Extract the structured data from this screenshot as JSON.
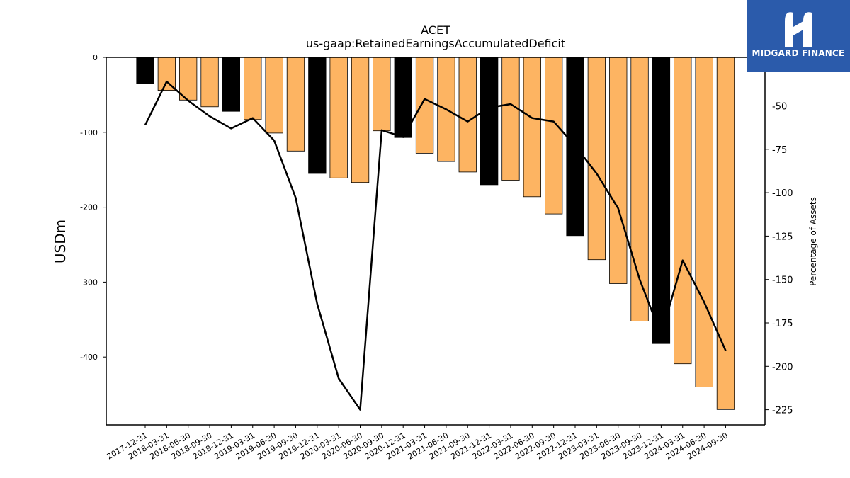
{
  "brand": {
    "name": "MIDGARD FINANCE"
  },
  "chart_data": {
    "type": "bar",
    "title": "ACET",
    "subtitle": "us-gaap:RetainedEarningsAccumulatedDeficit",
    "ylabel": "USDm",
    "y2label": "Percentage of Assets",
    "ylim": [
      -490,
      0
    ],
    "y2lim": [
      -233,
      -27
    ],
    "yticks": [
      0,
      -100,
      -200,
      -300,
      -400
    ],
    "y2ticks": [
      -50,
      -75,
      -100,
      -125,
      -150,
      -175,
      -200,
      -225
    ],
    "categories": [
      "2017-12-31",
      "2018-03-31",
      "2018-06-30",
      "2018-09-30",
      "2018-12-31",
      "2019-03-31",
      "2019-06-30",
      "2019-09-30",
      "2019-12-31",
      "2020-03-31",
      "2020-06-30",
      "2020-09-30",
      "2020-12-31",
      "2021-03-31",
      "2021-06-30",
      "2021-09-30",
      "2021-12-31",
      "2022-03-31",
      "2022-06-30",
      "2022-09-30",
      "2022-12-31",
      "2023-03-31",
      "2023-06-30",
      "2023-09-30",
      "2023-12-31",
      "2024-03-31",
      "2024-06-30",
      "2024-09-30"
    ],
    "series": [
      {
        "type": "bar",
        "axis": "left",
        "values": [
          -35,
          -44,
          -57,
          -66,
          -72,
          -83,
          -101,
          -125,
          -155,
          -161,
          -167,
          -98,
          -107,
          -128,
          -139,
          -153,
          -170,
          -164,
          -186,
          -209,
          -238,
          -270,
          -302,
          -352,
          -382,
          -409,
          -440,
          -470
        ],
        "colors": [
          "#000000",
          "#fdb462",
          "#fdb462",
          "#fdb462",
          "#000000",
          "#fdb462",
          "#fdb462",
          "#fdb462",
          "#000000",
          "#fdb462",
          "#fdb462",
          "#fdb462",
          "#000000",
          "#fdb462",
          "#fdb462",
          "#fdb462",
          "#000000",
          "#fdb462",
          "#fdb462",
          "#fdb462",
          "#000000",
          "#fdb462",
          "#fdb462",
          "#fdb462",
          "#000000",
          "#fdb462",
          "#fdb462",
          "#fdb462"
        ]
      },
      {
        "type": "line",
        "axis": "right",
        "color": "#000000",
        "values": [
          -61,
          -36,
          -47,
          -56,
          -63,
          -57,
          -70,
          -103,
          -164,
          -207,
          -225,
          -64,
          -68,
          -46,
          -52,
          -59,
          -51,
          -49,
          -57,
          -59,
          -73,
          -89,
          -109,
          -150,
          -182,
          -139,
          -163,
          -191
        ]
      }
    ]
  }
}
